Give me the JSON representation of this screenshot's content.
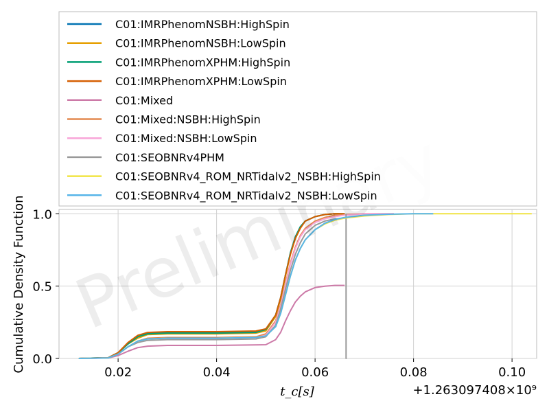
{
  "chart_data": {
    "type": "line",
    "title": "",
    "xlabel": "t_c[s]",
    "ylabel": "Cumulative Density Function",
    "x_offset_label": "+1.263097408×10⁹",
    "watermark": "Preliminary",
    "xlim": [
      0.008,
      0.105
    ],
    "ylim": [
      0.0,
      1.03
    ],
    "xticks": [
      0.02,
      0.04,
      0.06,
      0.08,
      0.1
    ],
    "xtick_labels": [
      "0.02",
      "0.04",
      "0.06",
      "0.08",
      "0.10"
    ],
    "yticks": [
      0.0,
      0.5,
      1.0
    ],
    "ytick_labels": [
      "0.0",
      "0.5",
      "1.0"
    ],
    "grid": true,
    "legend_position": "top",
    "series": [
      {
        "name": "C01:IMRPhenomNSBH:HighSpin",
        "color": "#0072b2",
        "x": [
          0.012,
          0.018,
          0.02,
          0.022,
          0.024,
          0.026,
          0.03,
          0.04,
          0.048,
          0.05,
          0.052,
          0.053,
          0.054,
          0.055,
          0.056,
          0.057,
          0.058,
          0.06,
          0.062,
          0.064,
          0.066
        ],
        "y": [
          0.0,
          0.005,
          0.04,
          0.1,
          0.15,
          0.175,
          0.18,
          0.18,
          0.185,
          0.2,
          0.3,
          0.42,
          0.58,
          0.73,
          0.84,
          0.91,
          0.95,
          0.98,
          0.995,
          1.0,
          1.0
        ]
      },
      {
        "name": "C01:IMRPhenomNSBH:LowSpin",
        "color": "#e69f00",
        "x": [
          0.012,
          0.018,
          0.02,
          0.022,
          0.024,
          0.026,
          0.03,
          0.04,
          0.048,
          0.05,
          0.052,
          0.053,
          0.054,
          0.055,
          0.056,
          0.057,
          0.058,
          0.06,
          0.062,
          0.064,
          0.066
        ],
        "y": [
          0.0,
          0.005,
          0.04,
          0.1,
          0.14,
          0.165,
          0.17,
          0.17,
          0.175,
          0.19,
          0.29,
          0.41,
          0.57,
          0.72,
          0.83,
          0.9,
          0.95,
          0.98,
          0.995,
          1.0,
          1.0
        ]
      },
      {
        "name": "C01:IMRPhenomXPHM:HighSpin",
        "color": "#009e73",
        "x": [
          0.012,
          0.018,
          0.02,
          0.022,
          0.024,
          0.026,
          0.03,
          0.04,
          0.048,
          0.05,
          0.052,
          0.053,
          0.054,
          0.055,
          0.056,
          0.057,
          0.058,
          0.06,
          0.062,
          0.064,
          0.066
        ],
        "y": [
          0.0,
          0.005,
          0.04,
          0.1,
          0.15,
          0.17,
          0.175,
          0.175,
          0.18,
          0.2,
          0.3,
          0.42,
          0.58,
          0.73,
          0.84,
          0.91,
          0.95,
          0.98,
          0.995,
          1.0,
          1.0
        ]
      },
      {
        "name": "C01:IMRPhenomXPHM:LowSpin",
        "color": "#d55e00",
        "x": [
          0.012,
          0.018,
          0.02,
          0.022,
          0.024,
          0.026,
          0.03,
          0.04,
          0.048,
          0.05,
          0.052,
          0.053,
          0.054,
          0.055,
          0.056,
          0.057,
          0.058,
          0.06,
          0.062,
          0.064,
          0.066
        ],
        "y": [
          0.0,
          0.005,
          0.04,
          0.11,
          0.16,
          0.18,
          0.185,
          0.185,
          0.19,
          0.205,
          0.3,
          0.42,
          0.58,
          0.72,
          0.83,
          0.9,
          0.95,
          0.98,
          0.995,
          1.0,
          1.0
        ]
      },
      {
        "name": "C01:Mixed",
        "color": "#cc79a7",
        "x": [
          0.012,
          0.018,
          0.02,
          0.022,
          0.024,
          0.026,
          0.03,
          0.04,
          0.05,
          0.052,
          0.053,
          0.054,
          0.055,
          0.056,
          0.057,
          0.058,
          0.06,
          0.062,
          0.064,
          0.066
        ],
        "y": [
          0.0,
          0.003,
          0.02,
          0.05,
          0.075,
          0.085,
          0.09,
          0.09,
          0.095,
          0.13,
          0.18,
          0.26,
          0.33,
          0.39,
          0.43,
          0.46,
          0.49,
          0.5,
          0.505,
          0.505
        ]
      },
      {
        "name": "C01:Mixed:NSBH:HighSpin",
        "color": "#e3894f",
        "x": [
          0.012,
          0.018,
          0.02,
          0.022,
          0.024,
          0.026,
          0.03,
          0.04,
          0.048,
          0.05,
          0.052,
          0.053,
          0.054,
          0.055,
          0.056,
          0.057,
          0.058,
          0.06,
          0.062,
          0.064,
          0.066,
          0.07,
          0.076
        ],
        "y": [
          0.0,
          0.004,
          0.03,
          0.08,
          0.12,
          0.14,
          0.145,
          0.145,
          0.15,
          0.17,
          0.26,
          0.37,
          0.52,
          0.66,
          0.77,
          0.85,
          0.9,
          0.95,
          0.975,
          0.99,
          0.995,
          1.0,
          1.0
        ]
      },
      {
        "name": "C01:Mixed:NSBH:LowSpin",
        "color": "#f8a5d8",
        "x": [
          0.012,
          0.018,
          0.02,
          0.022,
          0.024,
          0.026,
          0.03,
          0.04,
          0.048,
          0.05,
          0.052,
          0.053,
          0.054,
          0.055,
          0.056,
          0.057,
          0.058,
          0.06,
          0.062,
          0.064,
          0.066,
          0.07,
          0.076
        ],
        "y": [
          0.0,
          0.004,
          0.03,
          0.08,
          0.12,
          0.135,
          0.14,
          0.14,
          0.145,
          0.16,
          0.25,
          0.36,
          0.51,
          0.65,
          0.76,
          0.84,
          0.89,
          0.94,
          0.965,
          0.98,
          0.99,
          1.0,
          1.0
        ]
      },
      {
        "name": "C01:SEOBNRv4PHM",
        "color": "#999999",
        "x": [
          0.012,
          0.018,
          0.02,
          0.022,
          0.024,
          0.026,
          0.03,
          0.04,
          0.048,
          0.05,
          0.052,
          0.053,
          0.054,
          0.055,
          0.056,
          0.057,
          0.058,
          0.06,
          0.062,
          0.064,
          0.066,
          0.0663,
          0.0663,
          0.0663
        ],
        "y": [
          0.0,
          0.004,
          0.03,
          0.08,
          0.11,
          0.125,
          0.13,
          0.13,
          0.135,
          0.15,
          0.23,
          0.34,
          0.48,
          0.61,
          0.72,
          0.8,
          0.86,
          0.92,
          0.95,
          0.965,
          0.97,
          0.97,
          0.0,
          1.0
        ]
      },
      {
        "name": "C01:SEOBNRv4_ROM_NRTidalv2_NSBH:HighSpin",
        "color": "#f0e442",
        "x": [
          0.012,
          0.018,
          0.02,
          0.022,
          0.024,
          0.026,
          0.03,
          0.04,
          0.048,
          0.05,
          0.052,
          0.053,
          0.054,
          0.055,
          0.056,
          0.057,
          0.058,
          0.06,
          0.062,
          0.064,
          0.066,
          0.07,
          0.075,
          0.08,
          0.09,
          0.104
        ],
        "y": [
          0.0,
          0.004,
          0.03,
          0.08,
          0.12,
          0.135,
          0.14,
          0.14,
          0.145,
          0.155,
          0.22,
          0.31,
          0.44,
          0.57,
          0.68,
          0.76,
          0.82,
          0.89,
          0.93,
          0.955,
          0.97,
          0.985,
          0.995,
          1.0,
          1.0,
          1.0
        ]
      },
      {
        "name": "C01:SEOBNRv4_ROM_NRTidalv2_NSBH:LowSpin",
        "color": "#56b4e9",
        "x": [
          0.012,
          0.018,
          0.02,
          0.022,
          0.024,
          0.026,
          0.03,
          0.04,
          0.048,
          0.05,
          0.052,
          0.053,
          0.054,
          0.055,
          0.056,
          0.057,
          0.058,
          0.06,
          0.062,
          0.064,
          0.066,
          0.07,
          0.075,
          0.08,
          0.084
        ],
        "y": [
          0.0,
          0.004,
          0.03,
          0.08,
          0.12,
          0.135,
          0.14,
          0.14,
          0.145,
          0.155,
          0.22,
          0.31,
          0.44,
          0.57,
          0.68,
          0.76,
          0.82,
          0.89,
          0.935,
          0.96,
          0.975,
          0.99,
          0.997,
          1.0,
          1.0
        ]
      }
    ]
  }
}
